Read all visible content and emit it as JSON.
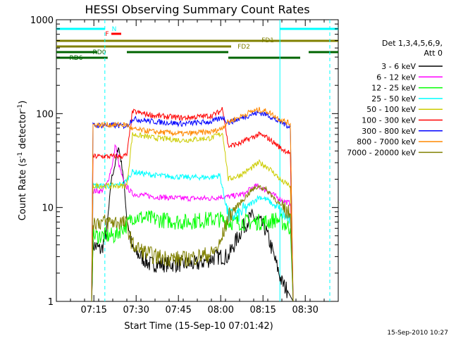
{
  "chart_data": {
    "type": "line",
    "title": "HESSI Observing Summary Count Rates",
    "xlabel": "Start Time (15-Sep-10 07:01:42)",
    "ylabel_main": "Count Rate (s",
    "ylabel_sup1": "-1",
    "ylabel_mid": " detector",
    "ylabel_sup2": "-1",
    "ylabel_end": ")",
    "y_scale": "log",
    "ylim": [
      1,
      1000
    ],
    "xlim_minutes": [
      0,
      100
    ],
    "x_ticks": [
      {
        "label": "07:15",
        "min": 13.3
      },
      {
        "label": "07:30",
        "min": 28.3
      },
      {
        "label": "07:45",
        "min": 43.3
      },
      {
        "label": "08:00",
        "min": 58.3
      },
      {
        "label": "08:15",
        "min": 73.3
      },
      {
        "label": "08:30",
        "min": 88.3
      }
    ],
    "y_ticks": [
      {
        "label": "1",
        "value": 1
      },
      {
        "label": "10",
        "value": 10
      },
      {
        "label": "100",
        "value": 100
      },
      {
        "label": "1000",
        "value": 1000
      }
    ],
    "timestamp": "15-Sep-2010 10:27",
    "legend": {
      "title_line1": "Det 1,3,4,5,6,9,",
      "title_line2": "Att 0",
      "placement": "right"
    },
    "series": [
      {
        "name": "3 - 6 keV",
        "color": "#000000",
        "points": [
          [
            12.5,
            1
          ],
          [
            13,
            4
          ],
          [
            16,
            3.5
          ],
          [
            18,
            6
          ],
          [
            19.5,
            20
          ],
          [
            21,
            30
          ],
          [
            22,
            45
          ],
          [
            23.5,
            25
          ],
          [
            25,
            8
          ],
          [
            27,
            3.5
          ],
          [
            30,
            3
          ],
          [
            33,
            2.5
          ],
          [
            40,
            2.5
          ],
          [
            50,
            2.5
          ],
          [
            57,
            3
          ],
          [
            61,
            3
          ],
          [
            63,
            4
          ],
          [
            66,
            6
          ],
          [
            69,
            8
          ],
          [
            72,
            7
          ],
          [
            74,
            6
          ],
          [
            76,
            4
          ],
          [
            78,
            2.5
          ],
          [
            80,
            1.6
          ],
          [
            82,
            1.3
          ],
          [
            84,
            1
          ]
        ]
      },
      {
        "name": "6 - 12 keV",
        "color": "#ff00ff",
        "points": [
          [
            12.5,
            1
          ],
          [
            13,
            15
          ],
          [
            16,
            15
          ],
          [
            18,
            18
          ],
          [
            20,
            30
          ],
          [
            21,
            48
          ],
          [
            22,
            30
          ],
          [
            24,
            18
          ],
          [
            27,
            14
          ],
          [
            35,
            13
          ],
          [
            45,
            12.5
          ],
          [
            55,
            12.5
          ],
          [
            58,
            13
          ],
          [
            61,
            13
          ],
          [
            64,
            13.5
          ],
          [
            67,
            14
          ],
          [
            69,
            16
          ],
          [
            71,
            17
          ],
          [
            73,
            16
          ],
          [
            75,
            15
          ],
          [
            78,
            13
          ],
          [
            80,
            12
          ],
          [
            83,
            11
          ],
          [
            84,
            1
          ]
        ]
      },
      {
        "name": "12 - 25 keV",
        "color": "#00ff00",
        "points": [
          [
            12.5,
            1
          ],
          [
            13,
            5
          ],
          [
            18,
            5
          ],
          [
            21,
            5
          ],
          [
            23,
            6
          ],
          [
            25,
            6.5
          ],
          [
            27,
            8
          ],
          [
            35,
            7.5
          ],
          [
            45,
            7
          ],
          [
            55,
            7.5
          ],
          [
            58,
            7.5
          ],
          [
            61,
            7
          ],
          [
            65,
            7
          ],
          [
            70,
            7
          ],
          [
            75,
            7
          ],
          [
            78,
            7.5
          ],
          [
            80,
            7
          ],
          [
            83,
            6
          ],
          [
            84,
            1
          ]
        ]
      },
      {
        "name": "25 - 50 keV",
        "color": "#00ffff",
        "points": [
          [
            12.5,
            1
          ],
          [
            13,
            17
          ],
          [
            20,
            17
          ],
          [
            24,
            18
          ],
          [
            27,
            24
          ],
          [
            35,
            22
          ],
          [
            45,
            21
          ],
          [
            55,
            21
          ],
          [
            58,
            22
          ],
          [
            61,
            8
          ],
          [
            65,
            8.5
          ],
          [
            69,
            11
          ],
          [
            72,
            13
          ],
          [
            75,
            12
          ],
          [
            78,
            10
          ],
          [
            80,
            8.5
          ],
          [
            83,
            7.5
          ],
          [
            84,
            1
          ]
        ]
      },
      {
        "name": "50 - 100 keV",
        "color": "#cccc00",
        "points": [
          [
            12.5,
            1
          ],
          [
            13,
            17
          ],
          [
            20,
            17
          ],
          [
            23,
            17
          ],
          [
            24.5,
            17
          ],
          [
            25,
            17.5
          ],
          [
            27,
            60
          ],
          [
            35,
            55
          ],
          [
            45,
            52
          ],
          [
            55,
            55
          ],
          [
            58,
            60
          ],
          [
            59,
            62
          ],
          [
            61,
            20
          ],
          [
            65,
            22
          ],
          [
            69,
            26
          ],
          [
            72,
            30
          ],
          [
            75,
            27
          ],
          [
            78,
            22
          ],
          [
            80,
            19
          ],
          [
            83,
            17
          ],
          [
            84,
            1
          ]
        ]
      },
      {
        "name": "100 - 300 keV",
        "color": "#ff0000",
        "points": [
          [
            12.5,
            1
          ],
          [
            13,
            35
          ],
          [
            20,
            35
          ],
          [
            23,
            35
          ],
          [
            25,
            36
          ],
          [
            27,
            105
          ],
          [
            35,
            95
          ],
          [
            45,
            90
          ],
          [
            55,
            95
          ],
          [
            58,
            105
          ],
          [
            59,
            115
          ],
          [
            61,
            45
          ],
          [
            65,
            48
          ],
          [
            69,
            55
          ],
          [
            72,
            60
          ],
          [
            75,
            55
          ],
          [
            78,
            47
          ],
          [
            80,
            42
          ],
          [
            83,
            38
          ],
          [
            84,
            1
          ]
        ]
      },
      {
        "name": "300 - 800 keV",
        "color": "#0000ff",
        "points": [
          [
            12.5,
            1
          ],
          [
            13,
            75
          ],
          [
            20,
            75
          ],
          [
            23,
            74
          ],
          [
            25,
            74
          ],
          [
            27,
            88
          ],
          [
            35,
            82
          ],
          [
            45,
            78
          ],
          [
            55,
            82
          ],
          [
            58,
            88
          ],
          [
            59,
            92
          ],
          [
            61,
            80
          ],
          [
            65,
            88
          ],
          [
            69,
            98
          ],
          [
            72,
            102
          ],
          [
            75,
            97
          ],
          [
            78,
            85
          ],
          [
            80,
            80
          ],
          [
            83,
            72
          ],
          [
            84,
            1
          ]
        ]
      },
      {
        "name": "800 - 7000 keV",
        "color": "#ff8800",
        "points": [
          [
            12.5,
            1
          ],
          [
            13,
            76
          ],
          [
            20,
            76
          ],
          [
            23,
            76
          ],
          [
            25,
            76
          ],
          [
            27,
            68
          ],
          [
            35,
            64
          ],
          [
            45,
            61
          ],
          [
            55,
            64
          ],
          [
            58,
            68
          ],
          [
            59,
            72
          ],
          [
            61,
            82
          ],
          [
            65,
            92
          ],
          [
            69,
            105
          ],
          [
            72,
            110
          ],
          [
            75,
            105
          ],
          [
            78,
            92
          ],
          [
            80,
            85
          ],
          [
            83,
            78
          ],
          [
            84,
            1
          ]
        ]
      },
      {
        "name": "7000 - 20000 keV",
        "color": "#808000",
        "points": [
          [
            12.5,
            1
          ],
          [
            13,
            7
          ],
          [
            20,
            7
          ],
          [
            23,
            7
          ],
          [
            25,
            6.5
          ],
          [
            27,
            4
          ],
          [
            30,
            3.5
          ],
          [
            35,
            3
          ],
          [
            45,
            2.8
          ],
          [
            55,
            3.2
          ],
          [
            58,
            4
          ],
          [
            61,
            8
          ],
          [
            65,
            11
          ],
          [
            69,
            15
          ],
          [
            72,
            17
          ],
          [
            75,
            15
          ],
          [
            78,
            12
          ],
          [
            80,
            10
          ],
          [
            83,
            8.5
          ],
          [
            84,
            1
          ]
        ]
      }
    ],
    "flag_bars": [
      {
        "label": "N",
        "color": "#00ffff",
        "row": "N",
        "segments": [
          [
            0,
            17.2
          ],
          [
            79.3,
            100
          ]
        ]
      },
      {
        "label": "F",
        "color": "#ff0000",
        "row": "F",
        "segments": [
          [
            19.5,
            23
          ]
        ]
      },
      {
        "label": "FD1",
        "color": "#808000",
        "row": "FD1",
        "segments": [
          [
            0,
            100
          ]
        ]
      },
      {
        "label": "FD2",
        "color": "#808000",
        "row": "FD2",
        "segments": [
          [
            0,
            62
          ]
        ]
      },
      {
        "label": "RD0",
        "color": "#006400",
        "row": "RD0",
        "segments": [
          [
            0,
            14.5
          ],
          [
            25,
            61
          ],
          [
            89.5,
            100
          ]
        ]
      },
      {
        "label": "RD6",
        "color": "#006400",
        "row": "RD6",
        "segments": [
          [
            0,
            18.2
          ],
          [
            61,
            86.5
          ]
        ]
      }
    ],
    "vlines": [
      {
        "color": "#00ffff",
        "style": "dashed",
        "min": 17.2
      },
      {
        "color": "#00ffff",
        "style": "solid",
        "min": 79.3
      },
      {
        "color": "#00ffff",
        "style": "dashed",
        "min": 97
      }
    ],
    "grid": false
  }
}
